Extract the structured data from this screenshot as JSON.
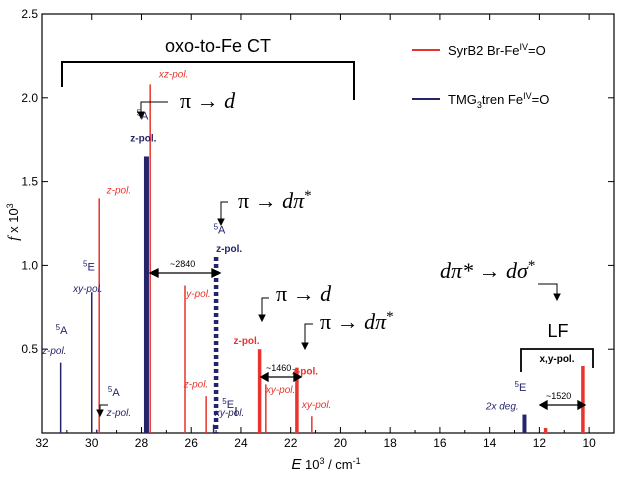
{
  "chart_data": {
    "type": "bar",
    "x_range": [
      32,
      9
    ],
    "y_range": [
      0,
      2.5
    ],
    "x_ticks": [
      "32",
      "30",
      "28",
      "26",
      "24",
      "22",
      "20",
      "18",
      "16",
      "14",
      "12",
      "10"
    ],
    "x_tick_values": [
      32,
      30,
      28,
      26,
      24,
      22,
      20,
      18,
      16,
      14,
      12,
      10
    ],
    "y_ticks": [
      "0.5",
      "1.0",
      "1.5",
      "2.0",
      "2.5"
    ],
    "y_tick_values": [
      0.5,
      1.0,
      1.5,
      2.0,
      2.5
    ],
    "xlabel_main": "E",
    "xlabel_rest": " 10",
    "xlabel_exp": "3",
    "xlabel_units": " / cm",
    "xlabel_units_exp": "-1",
    "ylabel_main": "f",
    "ylabel_rest": " x 10",
    "ylabel_exp": "3",
    "series": [
      {
        "name": "SyrB2 Br-Fe",
        "name_sup": "IV",
        "name_tail": "=O",
        "color": "#e8342c",
        "sticks": [
          {
            "x": 27.65,
            "y": 2.08,
            "w": 1.5
          },
          {
            "x": 29.7,
            "y": 1.4,
            "w": 1.5
          },
          {
            "x": 26.25,
            "y": 0.88,
            "w": 1.5
          },
          {
            "x": 25.4,
            "y": 0.22,
            "w": 1.5
          },
          {
            "x": 23.25,
            "y": 0.5,
            "w": 3.5
          },
          {
            "x": 23.0,
            "y": 0.29,
            "w": 1.5
          },
          {
            "x": 21.75,
            "y": 0.39,
            "w": 3.5
          },
          {
            "x": 21.15,
            "y": 0.1,
            "w": 1.5
          },
          {
            "x": 11.75,
            "y": 0.03,
            "w": 3.5
          },
          {
            "x": 10.25,
            "y": 0.4,
            "w": 3.5
          }
        ]
      },
      {
        "name": "TMG",
        "name_sub": "3",
        "name_mid": "tren Fe",
        "name_sup": "IV",
        "name_tail": "=O",
        "color": "#25246b",
        "sticks": [
          {
            "x": 27.8,
            "y": 1.65,
            "w": 5
          },
          {
            "x": 31.25,
            "y": 0.42,
            "w": 1.5
          },
          {
            "x": 30.0,
            "y": 0.84,
            "w": 1.5
          },
          {
            "x": 29.8,
            "y": 0.02,
            "w": 1.5
          },
          {
            "x": 25.1,
            "y": 0.05,
            "w": 1.5
          },
          {
            "x": 12.6,
            "y": 0.11,
            "w": 4
          }
        ],
        "dashed": {
          "x": 25.0,
          "y": 1.05,
          "w": 4.5
        }
      }
    ],
    "peak_labels": [
      {
        "t": "xz-pol.",
        "c": "red",
        "x": 27.3,
        "y": 2.12,
        "bold": false
      },
      {
        "t": "z-pol.",
        "c": "red",
        "x": 29.4,
        "y": 1.43,
        "bold": false
      },
      {
        "t": "y-pol.",
        "c": "red",
        "x": 26.2,
        "y": 0.81,
        "bold": false
      },
      {
        "t": "z-pol.",
        "c": "red",
        "x": 26.3,
        "y": 0.27,
        "bold": false
      },
      {
        "t": "z-pol.",
        "c": "red",
        "x": 24.3,
        "y": 0.53,
        "bold": true
      },
      {
        "t": "xy-pol.",
        "c": "red",
        "x": 23.0,
        "y": 0.24,
        "bold": false
      },
      {
        "t": "z-pol.",
        "c": "red",
        "x": 21.95,
        "y": 0.35,
        "bold": true
      },
      {
        "t": "xy-pol.",
        "c": "red",
        "x": 21.55,
        "y": 0.15,
        "bold": false
      },
      {
        "t": "z-pol.",
        "c": "blue",
        "x": 28.45,
        "y": 1.74,
        "bold": true
      },
      {
        "t": "z-pol.",
        "c": "blue",
        "x": 25.0,
        "y": 1.08,
        "bold": true
      },
      {
        "t": "xy-pol.",
        "c": "blue",
        "x": 30.75,
        "y": 0.84,
        "bold": false
      },
      {
        "t": "z-pol.",
        "c": "blue",
        "x": 32.0,
        "y": 0.47,
        "bold": false
      },
      {
        "t": "z-pol.",
        "c": "blue",
        "x": 29.4,
        "y": 0.1,
        "bold": false
      },
      {
        "t": "xy-pol.",
        "c": "blue",
        "x": 25.05,
        "y": 0.1,
        "bold": false
      },
      {
        "t": "2x deg.",
        "c": "blue",
        "x": 14.15,
        "y": 0.14,
        "bold": false
      }
    ],
    "state_labels": [
      {
        "t": "5",
        "b": "A",
        "c": "blue",
        "x": 28.2,
        "y": 1.87
      },
      {
        "t": "5",
        "b": "A",
        "c": "blue",
        "x": 25.1,
        "y": 1.19
      },
      {
        "t": "5",
        "b": "E",
        "c": "blue",
        "x": 30.35,
        "y": 0.97
      },
      {
        "t": "5",
        "b": "A",
        "c": "blue",
        "x": 31.45,
        "y": 0.59
      },
      {
        "t": "5",
        "b": "A",
        "c": "blue",
        "x": 29.35,
        "y": 0.22
      },
      {
        "t": "5",
        "b": "E",
        "c": "blue",
        "x": 24.75,
        "y": 0.15
      },
      {
        "t": "5",
        "b": "E",
        "c": "blue",
        "x": 13.0,
        "y": 0.25
      }
    ],
    "transitions": [
      {
        "t": "π → ",
        "i": "d",
        "s": "",
        "x": 430,
        "y": 108
      },
      {
        "t": "π → ",
        "i": "dπ",
        "s": "*",
        "x": 238,
        "y": 208
      },
      {
        "t": "π → ",
        "i": "d",
        "s": "",
        "x": 276,
        "y": 301
      },
      {
        "t": "π → ",
        "i": "dπ",
        "s": "*",
        "x": 320,
        "y": 329
      },
      {
        "t": "",
        "i": "dπ* → dσ",
        "s": "*",
        "x": 440,
        "y": 278
      }
    ],
    "separations": [
      {
        "t": "~2840",
        "x": 184
      },
      {
        "t": "~1460",
        "x": 282
      },
      {
        "t": "~1520",
        "x": 561
      }
    ],
    "oxo_label": "oxo-to-Fe CT",
    "lf_label": "LF",
    "lf_pol": "x,y-pol."
  }
}
